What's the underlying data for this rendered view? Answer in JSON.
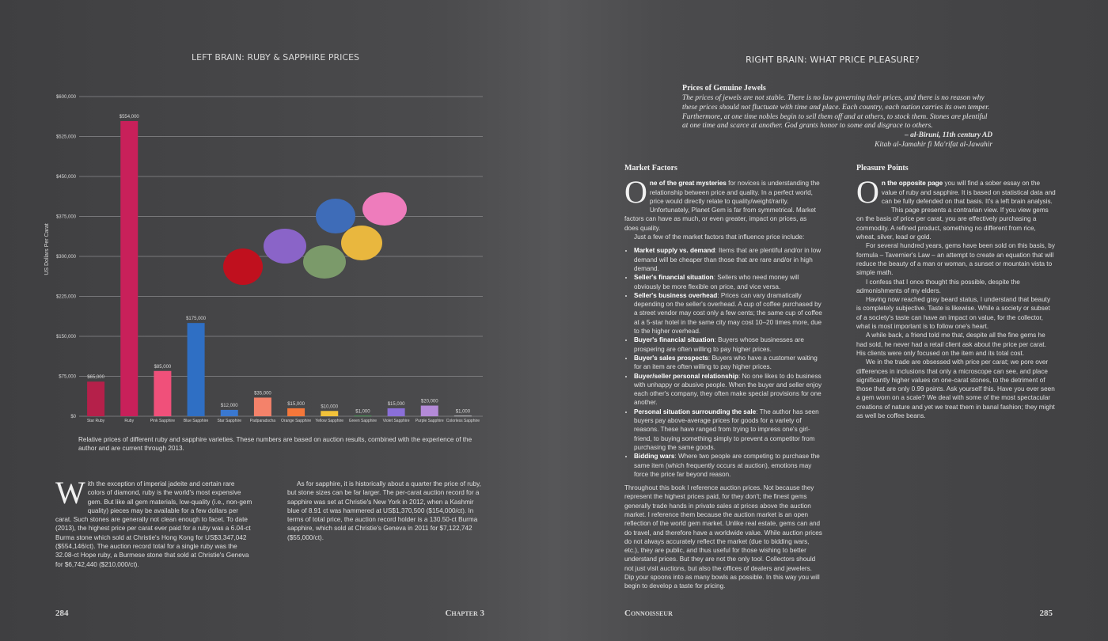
{
  "chart_data": {
    "type": "bar",
    "title": "LEFT BRAIN: RUBY & SAPPHIRE PRICES",
    "y_label": "US Dollars Per Carat",
    "categories": [
      "Star Ruby",
      "Ruby",
      "Pink Sapphire",
      "Blue Sapphire",
      "Star Sapphire",
      "Padparadscha",
      "Orange Sapphire",
      "Yellow Sapphire",
      "Green Sapphire",
      "Violet Sapphire",
      "Purple Sapphire",
      "Colorless Sapphire"
    ],
    "values": [
      65000,
      554000,
      85000,
      175000,
      12000,
      35000,
      15000,
      10000,
      1000,
      15000,
      20000,
      1000
    ],
    "value_labels": [
      "$65,000",
      "$554,000",
      "$85,000",
      "$175,000",
      "$12,000",
      "$35,000",
      "$15,000",
      "$10,000",
      "$1,000",
      "$15,000",
      "$20,000",
      "$1,000"
    ],
    "colors": [
      "#b5204a",
      "#c8205a",
      "#f0507a",
      "#2f6fc4",
      "#3a78d0",
      "#f4826a",
      "#f5773a",
      "#f2c23a",
      "#4fb060",
      "#8a6fd8",
      "#b48ad8",
      "#d8d8dc"
    ],
    "ylim": [
      0,
      600000
    ],
    "yticks": [
      {
        "value": 0,
        "label": "$0"
      },
      {
        "value": 75000,
        "label": "$75,000"
      },
      {
        "value": 150000,
        "label": "$150,000"
      },
      {
        "value": 225000,
        "label": "$225,000"
      },
      {
        "value": 300000,
        "label": "$300,000"
      },
      {
        "value": 375000,
        "label": "$375,000"
      },
      {
        "value": 450000,
        "label": "$450,000"
      },
      {
        "value": 525000,
        "label": "$525,000"
      },
      {
        "value": 600000,
        "label": "$600,000"
      }
    ],
    "grid": true
  },
  "left_page": {
    "caption": "Relative prices of different ruby and sapphire varieties. These numbers are based on auction results, combined with the experience of the author and are current through 2013.",
    "col1": {
      "dropcap": "W",
      "text": "ith the exception of imperial jadeite and certain rare colors of diamond, ruby is the world's most expensive gem. But like all gem materials, low-quality (i.e., non-gem quality) pieces may be available for a few dollars per carat. Such stones are generally not clean enough to facet. To date (2013), the highest price per carat ever paid for a ruby was a 6.04-ct Burma stone which sold at Christie's Hong Kong for US$3,347,042 ($554,146/ct). The auction record total for a single ruby was the 32.08-ct Hope ruby, a Burmese stone that sold at Christie's Geneva for $6,742,440 ($210,000/ct)."
    },
    "col2": "As for sapphire, it is historically about a quarter the price of ruby, but stone sizes can be far larger. The per-carat auction record for a sapphire was set at Christie's New York in 2012, when a Kashmir blue of 8.91 ct was hammered at US$1,370,500 ($154,000/ct). In terms of total price, the auction record holder is a 130.50-ct Burma sapphire, which sold at Christie's Geneva in 2011 for $7,122,742 ($55,000/ct).",
    "page_number": "284",
    "running_head": "Chapter 3"
  },
  "right_page": {
    "title": "RIGHT BRAIN: WHAT PRICE PLEASURE?",
    "quote": {
      "heading": "Prices of Genuine Jewels",
      "text": "The prices of jewels are not stable. There is no law governing their prices, and there is no reason why these prices should not fluctuate with time and place. Each country, each nation carries its own temper. Furthermore, at one time nobles begin to sell them off and at others, to stock them. Stones are plentiful at one time and scarce at another. God grants honor to some and disgrace to others.",
      "author": "– al-Biruni, 11th century AD",
      "source": "Kitab al-Jamahir fi Ma'rifat al-Jawahir"
    },
    "market_factors": {
      "heading": "Market Factors",
      "dropcap": "O",
      "lead": "ne of the great mysteries",
      "intro": " for novices is understanding the relationship between price and quality. In a perfect world, price would directly relate to quality/weight/rarity. Unfortunately, Planet Gem is far from symmetrical. Market factors can have as much, or even greater, impact on prices, as does quality.",
      "list_intro": "Just a few of the market factors that influence price include:",
      "bullets": [
        {
          "term": "Market supply vs. demand",
          "text": ": Items that are plentiful and/or in low demand will be cheaper than those that are rare and/or in high demand."
        },
        {
          "term": "Seller's financial situation",
          "text": ": Sellers who need money will obviously be more flexible on price, and vice versa."
        },
        {
          "term": "Seller's business overhead",
          "text": ": Prices can vary dramatically depending on the seller's overhead. A cup of coffee purchased by a street vendor may cost only a few cents; the same cup of coffee at a 5-star hotel in the same city may cost 10–20 times more, due to the higher overhead."
        },
        {
          "term": "Buyer's financial situation",
          "text": ": Buyers whose businesses are prospering are often willing to pay higher prices."
        },
        {
          "term": "Buyer's sales prospects",
          "text": ": Buyers who have a customer waiting for an item are often willing to pay higher prices."
        },
        {
          "term": "Buyer/seller personal relationship",
          "text": ": No one likes to do business with unhappy or abusive people. When the buyer and seller enjoy each other's company, they often make special provisions for one another."
        },
        {
          "term": "Personal situation surrounding the sale",
          "text": ": The author has seen buyers pay above-average prices for goods for a variety of reasons. These have ranged from trying to impress one's girl-friend, to buying something simply to prevent a competitor from purchasing the same goods."
        },
        {
          "term": "Bidding wars",
          "text": ": Where two people are competing to purchase the same item (which frequently occurs at auction), emotions may force the price far beyond reason."
        }
      ],
      "closing": "Throughout this book I reference auction prices. Not because they represent the highest prices paid, for they don't; the finest gems generally trade hands in private sales at prices above the auction market. I reference them because the auction market is an open reflection of the world gem market. Unlike real estate, gems can and do travel, and therefore have a worldwide value. While auction prices do not always accurately reflect the market (due to bidding wars, etc.), they are public, and thus useful for those wishing to better understand prices. But they are not the only tool. Collectors should not just visit auctions, but also the offices of dealers and jewelers. Dip your spoons into as many bowls as possible. In this way you will begin to develop a taste for pricing."
    },
    "pleasure_points": {
      "heading": "Pleasure Points",
      "dropcap": "O",
      "lead": "n the opposite page",
      "intro": " you will find a sober essay on the value of ruby and sapphire. It is based on statistical data and can be fully defended on that basis. It's a left brain analysis.",
      "paragraphs": [
        "This page presents a contrarian view. If you view gems on the basis of price per carat, you are effectively purchasing a commodity. A refined product, something no different from rice, wheat, silver, lead or gold.",
        "For several hundred years, gems have been sold on this basis, by formula – Tavernier's Law – an attempt to create an equation that will reduce the beauty of a man or woman, a sunset or mountain vista to simple math.",
        "I confess that I once thought this possible, despite the admonishments of my elders.",
        "Having now reached gray beard status, I understand that beauty is completely subjective. Taste is likewise. While a society or subset of a society's taste can have an impact on value, for the collector, what is most important is to follow one's heart.",
        "A while back, a friend told me that, despite all the fine gems he had sold, he never had a retail client ask about the price per carat. His clients were only focused on the item and its total cost.",
        "We in the trade are obsessed with price per carat; we pore over differences in inclusions that only a microscope can see, and place significantly higher values on one-carat stones, to the detriment of those that are only 0.99 points. Ask yourself this. Have you ever seen a gem worn on a scale? We deal with some of the most spectacular creations of nature and yet we treat them in banal fashion; they might as well be coffee beans."
      ]
    },
    "running_head": "Connoisseur",
    "page_number": "285"
  }
}
